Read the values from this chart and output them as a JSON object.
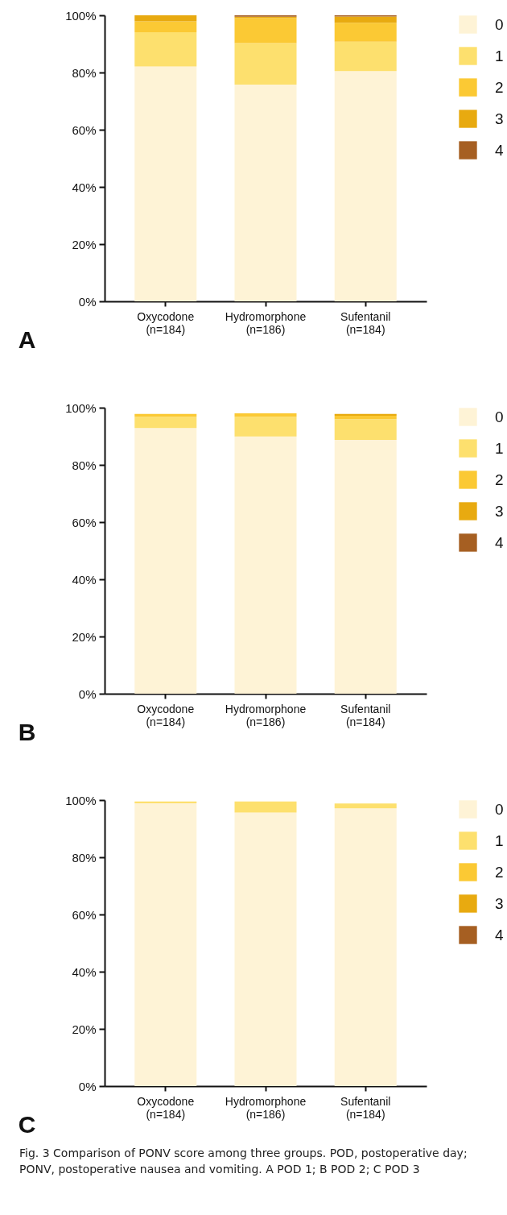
{
  "chart_data": [
    {
      "type": "bar",
      "stacked": true,
      "title": "A",
      "categories": [
        "Oxycodone\n(n=184)",
        "Hydromorphone\n(n=186)",
        "Sufentanil\n(n=184)"
      ],
      "series": [
        {
          "name": "0",
          "color": "#fef3d6",
          "values": [
            82.1,
            75.8,
            80.5
          ]
        },
        {
          "name": "1",
          "color": "#fde06e",
          "values": [
            12.0,
            14.5,
            10.3
          ]
        },
        {
          "name": "2",
          "color": "#fbc934",
          "values": [
            3.8,
            8.7,
            6.6
          ]
        },
        {
          "name": "3",
          "color": "#e8aa10",
          "values": [
            2.1,
            0.5,
            2.2
          ]
        },
        {
          "name": "4",
          "color": "#a65f22",
          "values": [
            0,
            0.5,
            0.4
          ]
        }
      ],
      "ylim": [
        0,
        100
      ],
      "yticks": [
        {
          "value": 0,
          "label": "0%"
        },
        {
          "value": 20,
          "label": "20%"
        },
        {
          "value": 40,
          "label": "40%"
        },
        {
          "value": 60,
          "label": "60%"
        },
        {
          "value": 80,
          "label": "80%"
        },
        {
          "value": 100,
          "label": "100%"
        }
      ],
      "grid": false,
      "legend": "right"
    },
    {
      "type": "bar",
      "stacked": true,
      "title": "B",
      "categories": [
        "Oxycodone\n(n=184)",
        "Hydromorphone\n(n=186)",
        "Sufentanil\n(n=184)"
      ],
      "series": [
        {
          "name": "0",
          "color": "#fef3d6",
          "values": [
            92.9,
            89.9,
            88.7
          ]
        },
        {
          "name": "1",
          "color": "#fde06e",
          "values": [
            3.9,
            6.9,
            7.3
          ]
        },
        {
          "name": "2",
          "color": "#fbc934",
          "values": [
            1.0,
            1.2,
            1.2
          ]
        },
        {
          "name": "3",
          "color": "#e8aa10",
          "values": [
            0,
            0,
            0.6
          ]
        },
        {
          "name": "4",
          "color": "#a65f22",
          "values": [
            0,
            0,
            0
          ]
        }
      ],
      "ylim": [
        0,
        100
      ],
      "yticks": [
        {
          "value": 0,
          "label": "0%"
        },
        {
          "value": 20,
          "label": "20%"
        },
        {
          "value": 40,
          "label": "40%"
        },
        {
          "value": 60,
          "label": "60%"
        },
        {
          "value": 80,
          "label": "80%"
        },
        {
          "value": 100,
          "label": "100%"
        }
      ],
      "grid": false,
      "legend": "right"
    },
    {
      "type": "bar",
      "stacked": true,
      "title": "C",
      "categories": [
        "Oxycodone\n(n=184)",
        "Hydromorphone\n(n=186)",
        "Sufentanil\n(n=184)"
      ],
      "series": [
        {
          "name": "0",
          "color": "#fef3d6",
          "values": [
            98.9,
            95.6,
            97.1
          ]
        },
        {
          "name": "1",
          "color": "#fde06e",
          "values": [
            0.6,
            3.9,
            1.7
          ]
        },
        {
          "name": "2",
          "color": "#fbc934",
          "values": [
            0,
            0,
            0
          ]
        },
        {
          "name": "3",
          "color": "#e8aa10",
          "values": [
            0,
            0,
            0
          ]
        },
        {
          "name": "4",
          "color": "#a65f22",
          "values": [
            0,
            0,
            0
          ]
        }
      ],
      "ylim": [
        0,
        100
      ],
      "yticks": [
        {
          "value": 0,
          "label": "0%"
        },
        {
          "value": 20,
          "label": "20%"
        },
        {
          "value": 40,
          "label": "40%"
        },
        {
          "value": 60,
          "label": "60%"
        },
        {
          "value": 80,
          "label": "80%"
        },
        {
          "value": 100,
          "label": "100%"
        }
      ],
      "grid": false,
      "legend": "right",
      "annotations": [
        "Fig. 3 Comparison of PONV score among three groups. POD, postoperative day; PONV, postoperative nausea and vomiting. A POD 1; B POD 2; C POD 3"
      ]
    }
  ]
}
